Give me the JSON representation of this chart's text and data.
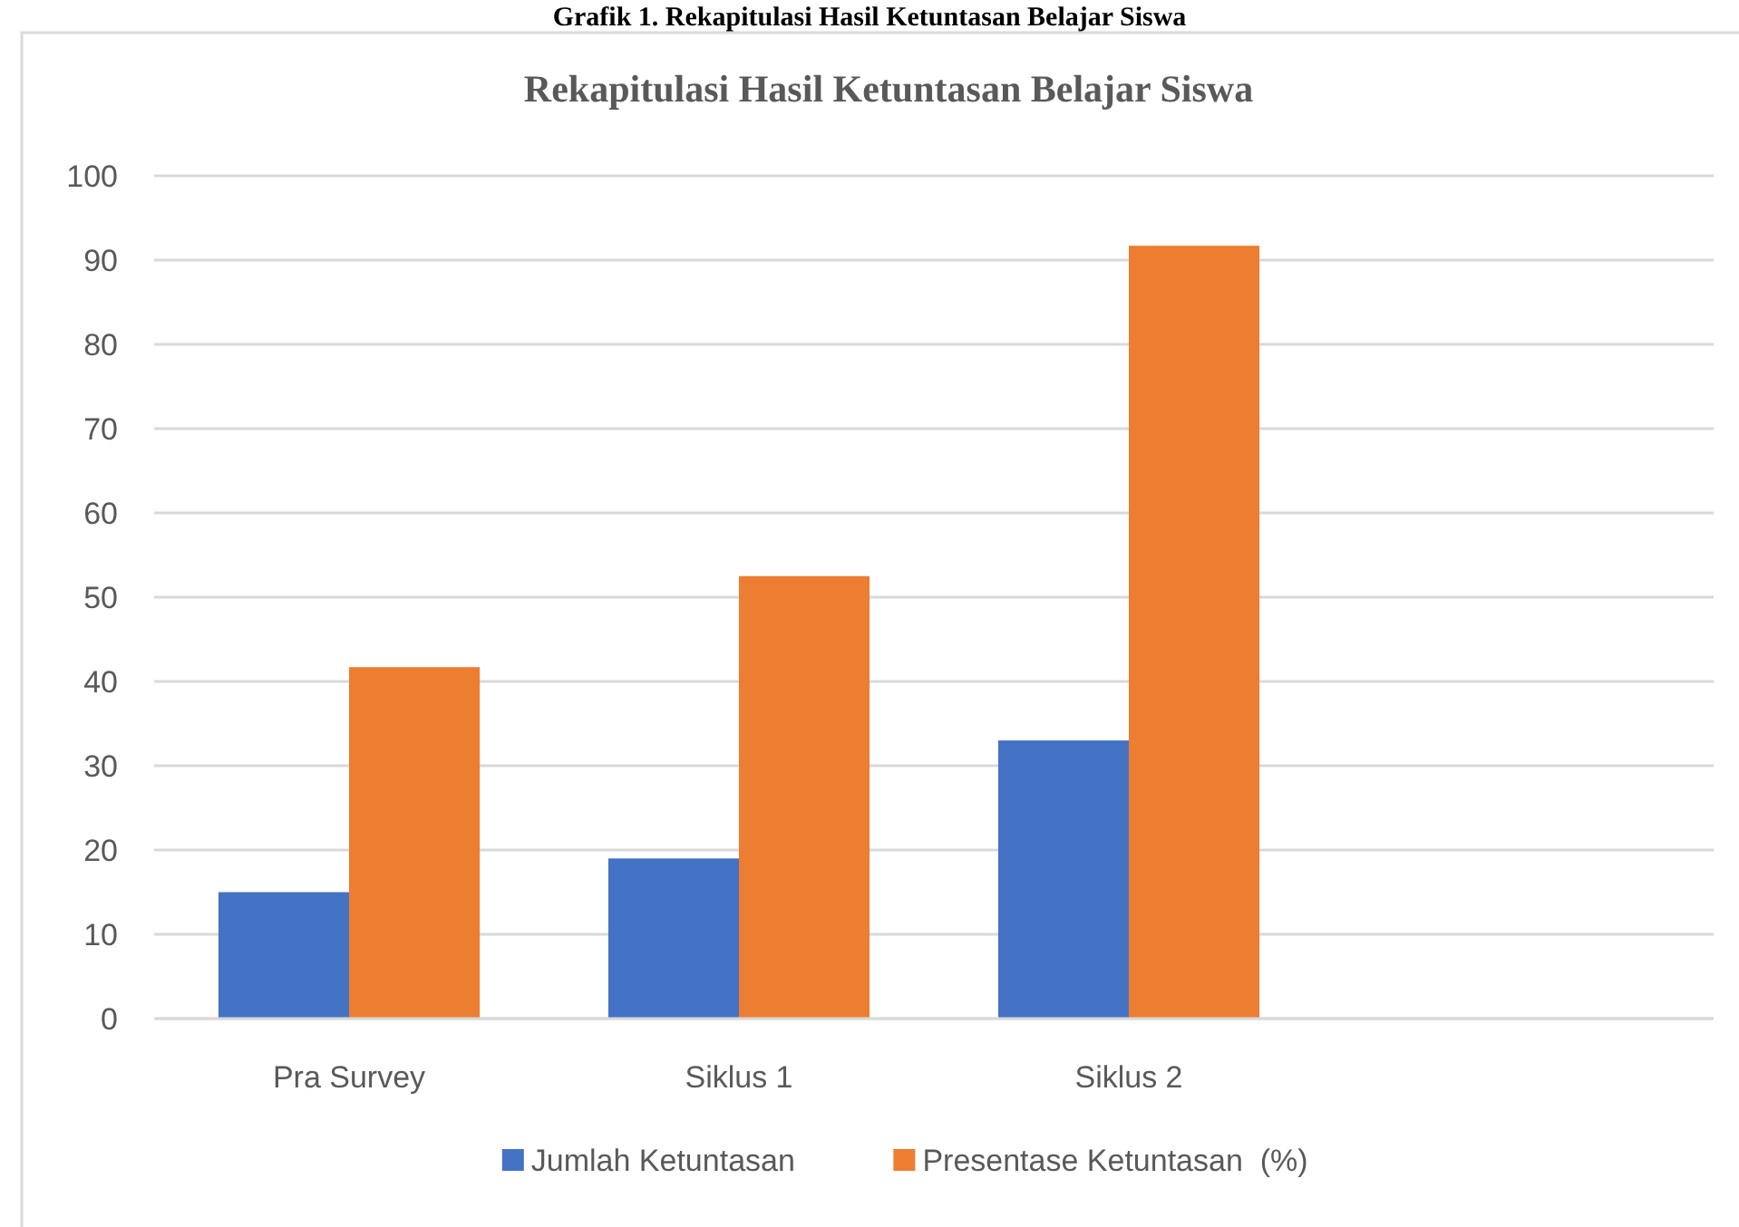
{
  "chart_data": {
    "type": "bar",
    "title": "Rekapitulasi Hasil Ketuntasan Belajar Siswa",
    "annotations": [
      "Grafik 1. Rekapitulasi Hasil Ketuntasan Belajar Siswa"
    ],
    "categories": [
      "Pra Survey",
      "Siklus 1",
      "Siklus 2",
      null
    ],
    "series": [
      {
        "name": "Jumlah Ketuntasan",
        "color": "#4472c4",
        "values": [
          15,
          19,
          33,
          null
        ]
      },
      {
        "name": "Presentase Ketuntasan  (%)",
        "color": "#ed7d31",
        "values": [
          41.7,
          52.5,
          91.7,
          null
        ]
      }
    ],
    "ylim": [
      0,
      100
    ],
    "yticks": [
      0,
      10,
      20,
      30,
      40,
      50,
      60,
      70,
      80,
      90,
      100
    ],
    "grid": "y",
    "legend": "bottom"
  }
}
